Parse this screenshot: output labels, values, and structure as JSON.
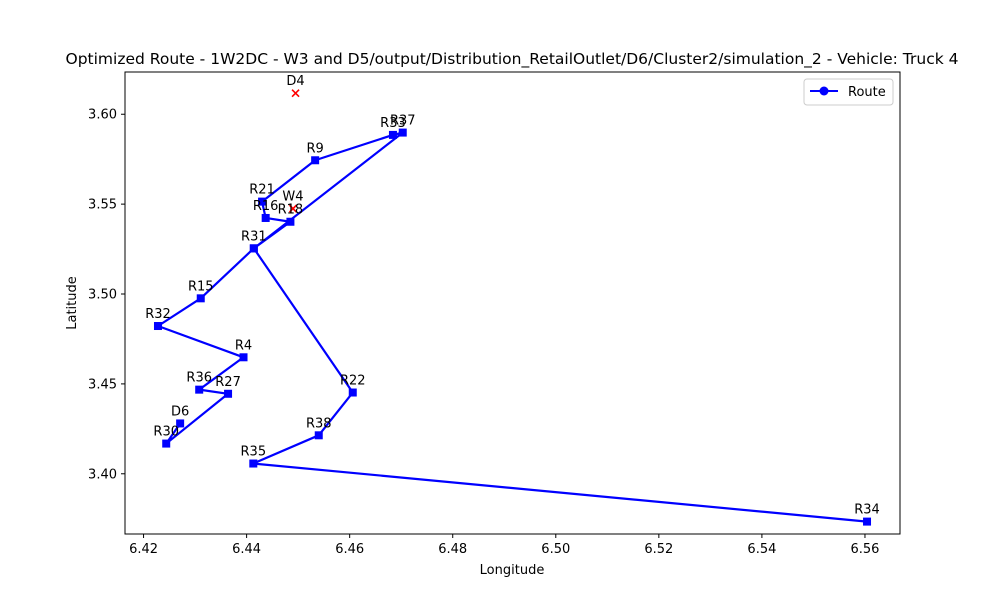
{
  "chart_data": {
    "type": "line",
    "title": "Optimized Route - 1W2DC - W3 and D5/output/Distribution_RetailOutlet/D6/Cluster2/simulation_2 - Vehicle: Truck 4",
    "xlabel": "Longitude",
    "ylabel": "Latitude",
    "xlim": [
      6.4164,
      6.5668
    ],
    "ylim": [
      3.3665,
      3.6235
    ],
    "xticks": [
      6.42,
      6.44,
      6.46,
      6.48,
      6.5,
      6.52,
      6.54,
      6.56
    ],
    "xtick_labels": [
      "6.42",
      "6.44",
      "6.46",
      "6.48",
      "6.50",
      "6.52",
      "6.54",
      "6.56"
    ],
    "yticks": [
      3.4,
      3.45,
      3.5,
      3.55,
      3.6
    ],
    "ytick_labels": [
      "3.40",
      "3.45",
      "3.50",
      "3.55",
      "3.60"
    ],
    "grid": false,
    "legend": {
      "position": "top-right",
      "entries": [
        {
          "label": "Route",
          "color": "#0000ff"
        }
      ]
    },
    "series": [
      {
        "name": "Route",
        "color": "#0000ff",
        "points": [
          {
            "label": "D6",
            "x": 6.4271,
            "y": 3.428
          },
          {
            "label": "R30",
            "x": 6.4244,
            "y": 3.4168
          },
          {
            "label": "R27",
            "x": 6.4364,
            "y": 3.4445
          },
          {
            "label": "R36",
            "x": 6.4308,
            "y": 3.4468
          },
          {
            "label": "R4",
            "x": 6.4394,
            "y": 3.4648
          },
          {
            "label": "R32",
            "x": 6.4228,
            "y": 3.4822
          },
          {
            "label": "R15",
            "x": 6.4311,
            "y": 3.4976
          },
          {
            "label": "R31",
            "x": 6.4414,
            "y": 3.5254
          },
          {
            "label": "R18",
            "x": 6.4485,
            "y": 3.5402
          },
          {
            "label": "R16",
            "x": 6.4437,
            "y": 3.5423
          },
          {
            "label": "R21",
            "x": 6.443,
            "y": 3.5514
          },
          {
            "label": "R9",
            "x": 6.4533,
            "y": 3.5744
          },
          {
            "label": "R33",
            "x": 6.4684,
            "y": 3.5885
          },
          {
            "label": "R37",
            "x": 6.4703,
            "y": 3.5898
          },
          {
            "label": "R31",
            "x": 6.4414,
            "y": 3.5254
          },
          {
            "label": "R22",
            "x": 6.4606,
            "y": 3.4452
          },
          {
            "label": "R38",
            "x": 6.454,
            "y": 3.4214
          },
          {
            "label": "R35",
            "x": 6.4413,
            "y": 3.4057
          },
          {
            "label": "R34",
            "x": 6.5604,
            "y": 3.3734
          }
        ]
      }
    ],
    "extra_markers": [
      {
        "label": "D4",
        "x": 6.4495,
        "y": 3.6117,
        "color": "#ff0000"
      },
      {
        "label": "W4",
        "x": 6.449,
        "y": 3.5475,
        "color": "#ff0000"
      }
    ],
    "point_labels": [
      {
        "text": "D4"
      },
      {
        "text": "R33"
      },
      {
        "text": "R37"
      },
      {
        "text": "R9"
      },
      {
        "text": "R21"
      },
      {
        "text": "W4"
      },
      {
        "text": "R16"
      },
      {
        "text": "R18"
      },
      {
        "text": "R31"
      },
      {
        "text": "R15"
      },
      {
        "text": "R32"
      },
      {
        "text": "R4"
      },
      {
        "text": "R36"
      },
      {
        "text": "R27"
      },
      {
        "text": "R22"
      },
      {
        "text": "D6"
      },
      {
        "text": "R38"
      },
      {
        "text": "R30"
      },
      {
        "text": "R35"
      },
      {
        "text": "R34"
      }
    ]
  }
}
